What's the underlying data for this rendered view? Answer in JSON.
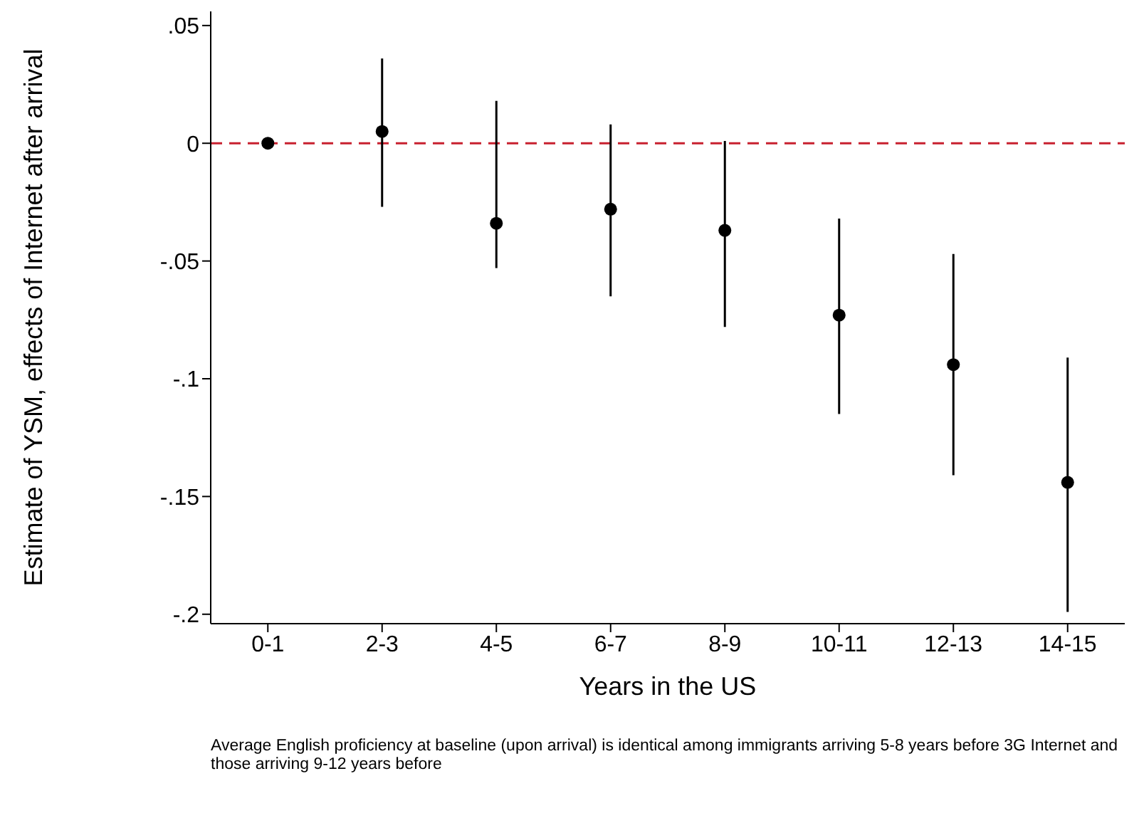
{
  "chart_data": {
    "type": "scatter",
    "xlabel": "Years in the US",
    "ylabel": "Estimate of YSM, effects of Internet after arrival",
    "categories": [
      "0-1",
      "2-3",
      "4-5",
      "6-7",
      "8-9",
      "10-11",
      "12-13",
      "14-15"
    ],
    "series": [
      {
        "color": "#000000",
        "values": [
          0,
          0.005,
          -0.034,
          -0.028,
          -0.037,
          -0.073,
          -0.094,
          -0.144
        ],
        "errors": [
          null,
          [
            -0.027,
            0.036
          ],
          [
            -0.053,
            0.018
          ],
          [
            -0.065,
            0.008
          ],
          [
            -0.078,
            0.001
          ],
          [
            -0.115,
            -0.032
          ],
          [
            -0.141,
            -0.047
          ],
          [
            -0.199,
            -0.091
          ]
        ]
      }
    ],
    "ylim": [
      -0.204,
      0.056
    ],
    "yticks": [
      {
        "value": 0.05,
        "label": ".05"
      },
      {
        "value": 0,
        "label": "0"
      },
      {
        "value": -0.05,
        "label": "-.05"
      },
      {
        "value": -0.1,
        "label": "-.1"
      },
      {
        "value": -0.15,
        "label": "-.15"
      },
      {
        "value": -0.2,
        "label": "-.2"
      }
    ],
    "ref_lines": [
      {
        "axis": "y",
        "value": 0,
        "color": "#c8202f",
        "line_style": "dashed"
      }
    ],
    "marker": "circle",
    "grid": false,
    "legend": false,
    "annotations": [
      "Average English proficiency at baseline (upon arrival) is identical among immigrants arriving 5-8 years before 3G Internet and those arriving 9-12 years before"
    ]
  }
}
